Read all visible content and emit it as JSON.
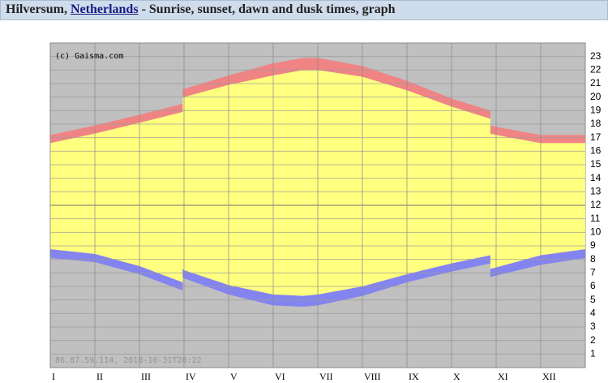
{
  "header": {
    "place": "Hilversum, ",
    "country": "Netherlands",
    "rest": " - Sunrise, sunset, dawn and dusk times, graph"
  },
  "chart_data": {
    "type": "daylight",
    "annotations": [
      "(c) Gaisma.com",
      "86.87.59.114, 2018-10-31T20:22"
    ],
    "x": [
      0,
      1,
      2,
      2.97,
      2.97,
      3,
      4,
      5,
      5.67,
      6,
      7,
      8,
      9,
      9.87,
      9.87,
      10,
      11,
      12
    ],
    "series": [
      {
        "color": "#f08484",
        "values": [
          17.2,
          17.9,
          18.7,
          19.5,
          20.6,
          20.6,
          21.6,
          22.5,
          22.9,
          22.9,
          22.3,
          21.2,
          19.9,
          19.0,
          17.9,
          17.8,
          17.2,
          17.2
        ]
      },
      {
        "color": "#ffff80",
        "values": [
          16.6,
          17.3,
          18.1,
          18.9,
          20.0,
          20.0,
          20.9,
          21.6,
          22.0,
          22.0,
          21.5,
          20.5,
          19.3,
          18.4,
          17.3,
          17.2,
          16.6,
          16.6
        ]
      },
      {
        "color": "#8484f0",
        "values": [
          8.75,
          8.4,
          7.5,
          6.3,
          7.3,
          7.2,
          6.1,
          5.4,
          5.3,
          5.4,
          6.0,
          6.9,
          7.7,
          8.3,
          7.3,
          7.4,
          8.3,
          8.75
        ]
      },
      {
        "values": [
          8.1,
          7.8,
          6.9,
          5.7,
          6.7,
          6.6,
          5.4,
          4.6,
          4.5,
          4.6,
          5.3,
          6.3,
          7.1,
          7.7,
          6.7,
          6.8,
          7.6,
          8.1
        ]
      }
    ],
    "xlim": [
      0,
      12
    ],
    "xticks": [
      {
        "value": 0,
        "label": "I"
      },
      {
        "value": 1,
        "label": "II"
      },
      {
        "value": 2,
        "label": "III"
      },
      {
        "value": 3,
        "label": "IV"
      },
      {
        "value": 4,
        "label": "V"
      },
      {
        "value": 5,
        "label": "VI"
      },
      {
        "value": 6,
        "label": "VII"
      },
      {
        "value": 7,
        "label": "VIII"
      },
      {
        "value": 8,
        "label": "IX"
      },
      {
        "value": 9,
        "label": "X"
      },
      {
        "value": 10,
        "label": "XI"
      },
      {
        "value": 11,
        "label": "XII"
      }
    ],
    "ylim": [
      0,
      24
    ],
    "yticks": [
      1,
      2,
      3,
      4,
      5,
      6,
      7,
      8,
      9,
      10,
      11,
      12,
      13,
      14,
      15,
      16,
      17,
      18,
      19,
      20,
      21,
      22,
      23
    ],
    "grid": true
  }
}
